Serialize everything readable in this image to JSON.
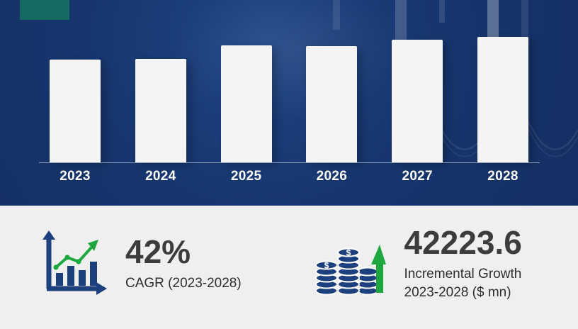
{
  "chart_data": {
    "type": "bar",
    "title": "",
    "categories": [
      "2023",
      "2024",
      "2025",
      "2026",
      "2027",
      "2028"
    ],
    "values": [
      145,
      146,
      165,
      164,
      173,
      177
    ],
    "value_note": "relative bar heights in px; no y-axis or data labels shown",
    "xlabel": "",
    "ylabel": "",
    "grid": false,
    "legend": "none",
    "bar_color": "#f4f4f4",
    "background_color": "#17366e"
  },
  "stats": {
    "cagr": {
      "value": "42%",
      "label": "CAGR (2023-2028)"
    },
    "incremental": {
      "value": "42223.6",
      "label_line1": "Incremental Growth",
      "label_line2": "2023-2028 ($ mn)"
    }
  },
  "icons": {
    "left": "growth-trend-icon",
    "right": "coin-stack-icon",
    "right_extra": "up-arrow-icon"
  },
  "colors": {
    "background_navy": "#17366e",
    "accent_teal": "#156a62",
    "bar_fill": "#f4f4f4",
    "panel_gray": "#efefef",
    "text_dark": "#3c3c3c",
    "green": "#1ea73e",
    "icon_navy": "#1c3f7d"
  }
}
